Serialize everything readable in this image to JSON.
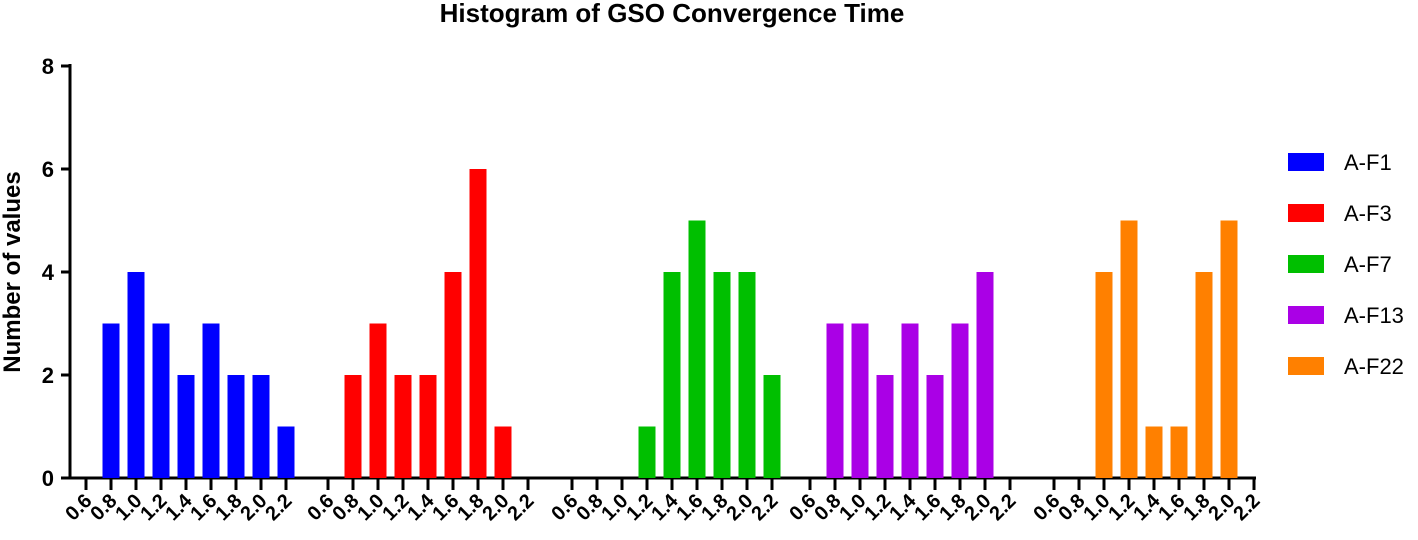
{
  "chart_data": {
    "type": "bar",
    "title": "Histogram of GSO Convergence Time",
    "xlabel": "",
    "ylabel": "Number of values",
    "ylim": [
      0,
      8
    ],
    "yticks": [
      "0",
      "2",
      "4",
      "6",
      "8"
    ],
    "legend_position": "right",
    "grid": false,
    "x_tick_labels": [
      "0.6",
      "0.8",
      "1.0",
      "1.2",
      "1.4",
      "1.6",
      "1.8",
      "2.0",
      "2.2"
    ],
    "bin_centers": [
      "0.8",
      "1.0",
      "1.2",
      "1.4",
      "1.6",
      "1.8",
      "2.0",
      "2.2"
    ],
    "series": [
      {
        "name": "A-F1",
        "color": "#0000ff",
        "values": [
          3,
          4,
          3,
          2,
          3,
          2,
          2,
          1
        ]
      },
      {
        "name": "A-F3",
        "color": "#ff0000",
        "values": [
          2,
          3,
          2,
          2,
          4,
          6,
          1,
          0
        ]
      },
      {
        "name": "A-F7",
        "color": "#00bf00",
        "values": [
          0,
          0,
          1,
          4,
          5,
          4,
          4,
          2
        ]
      },
      {
        "name": "A-F13",
        "color": "#aa00e6",
        "values": [
          3,
          3,
          2,
          3,
          2,
          3,
          4,
          0
        ]
      },
      {
        "name": "A-F22",
        "color": "#ff8000",
        "values": [
          0,
          4,
          5,
          1,
          1,
          4,
          5,
          0
        ]
      }
    ]
  }
}
